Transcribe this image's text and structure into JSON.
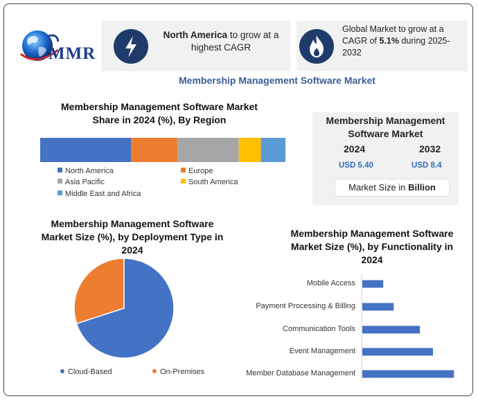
{
  "header": {
    "logo_text": "MMR",
    "card1": {
      "bold": "North America",
      "text": " to grow at a highest CAGR"
    },
    "card2": {
      "pre": "Global Market to grow at a CAGR of ",
      "bold": "5.1%",
      "post": " during 2025-2032"
    },
    "icons": {
      "card1": "lightning-bolt-icon",
      "card2": "flame-icon"
    },
    "title": "Membership Management Software Market"
  },
  "colors": {
    "accent": "#3b5c96",
    "icon_circle": "#1f3b6b",
    "north_america": "#4472c4",
    "europe": "#ed7d31",
    "asia_pacific": "#a5a5a5",
    "south_america": "#ffc000",
    "middle_east_africa": "#5b9bd5"
  },
  "market_size": {
    "title": "Membership Management Software Market",
    "year_start": "2024",
    "year_end": "2032",
    "value_start": "USD 5.40",
    "value_end": "USD 8.4",
    "unit_prefix": "Market Size in ",
    "unit_bold": "Billion"
  },
  "chart_data": [
    {
      "type": "bar",
      "orientation": "stacked-horizontal",
      "title": "Membership Management Software Market Share in 2024 (%), By Region",
      "series": [
        {
          "name": "North America",
          "values": [
            37
          ],
          "color": "#4472c4"
        },
        {
          "name": "Europe",
          "values": [
            19
          ],
          "color": "#ed7d31"
        },
        {
          "name": "Asia Pacific",
          "values": [
            25
          ],
          "color": "#a5a5a5"
        },
        {
          "name": "South America",
          "values": [
            9
          ],
          "color": "#ffc000"
        },
        {
          "name": "Middle East and Africa",
          "values": [
            10
          ],
          "color": "#5b9bd5"
        }
      ],
      "legend_position": "bottom"
    },
    {
      "type": "pie",
      "title": "Membership Management Software Market Size (%), by Deployment Type in 2024",
      "labels": [
        "Cloud-Based",
        "On-Premises"
      ],
      "values": [
        70,
        30
      ],
      "colors": [
        "#4472c4",
        "#ed7d31"
      ],
      "legend_position": "bottom"
    },
    {
      "type": "bar",
      "orientation": "horizontal",
      "title": "Membership Management Software Market Size (%), by Functionality in 2024",
      "categories": [
        "Mobile Access",
        "Payment Processing & Billing",
        "Communication Tools",
        "Event Management",
        "Member Database Management"
      ],
      "values": [
        8,
        12,
        22,
        27,
        35
      ],
      "color": "#4472c4",
      "xlim": [
        0,
        36
      ],
      "grid": false
    }
  ]
}
